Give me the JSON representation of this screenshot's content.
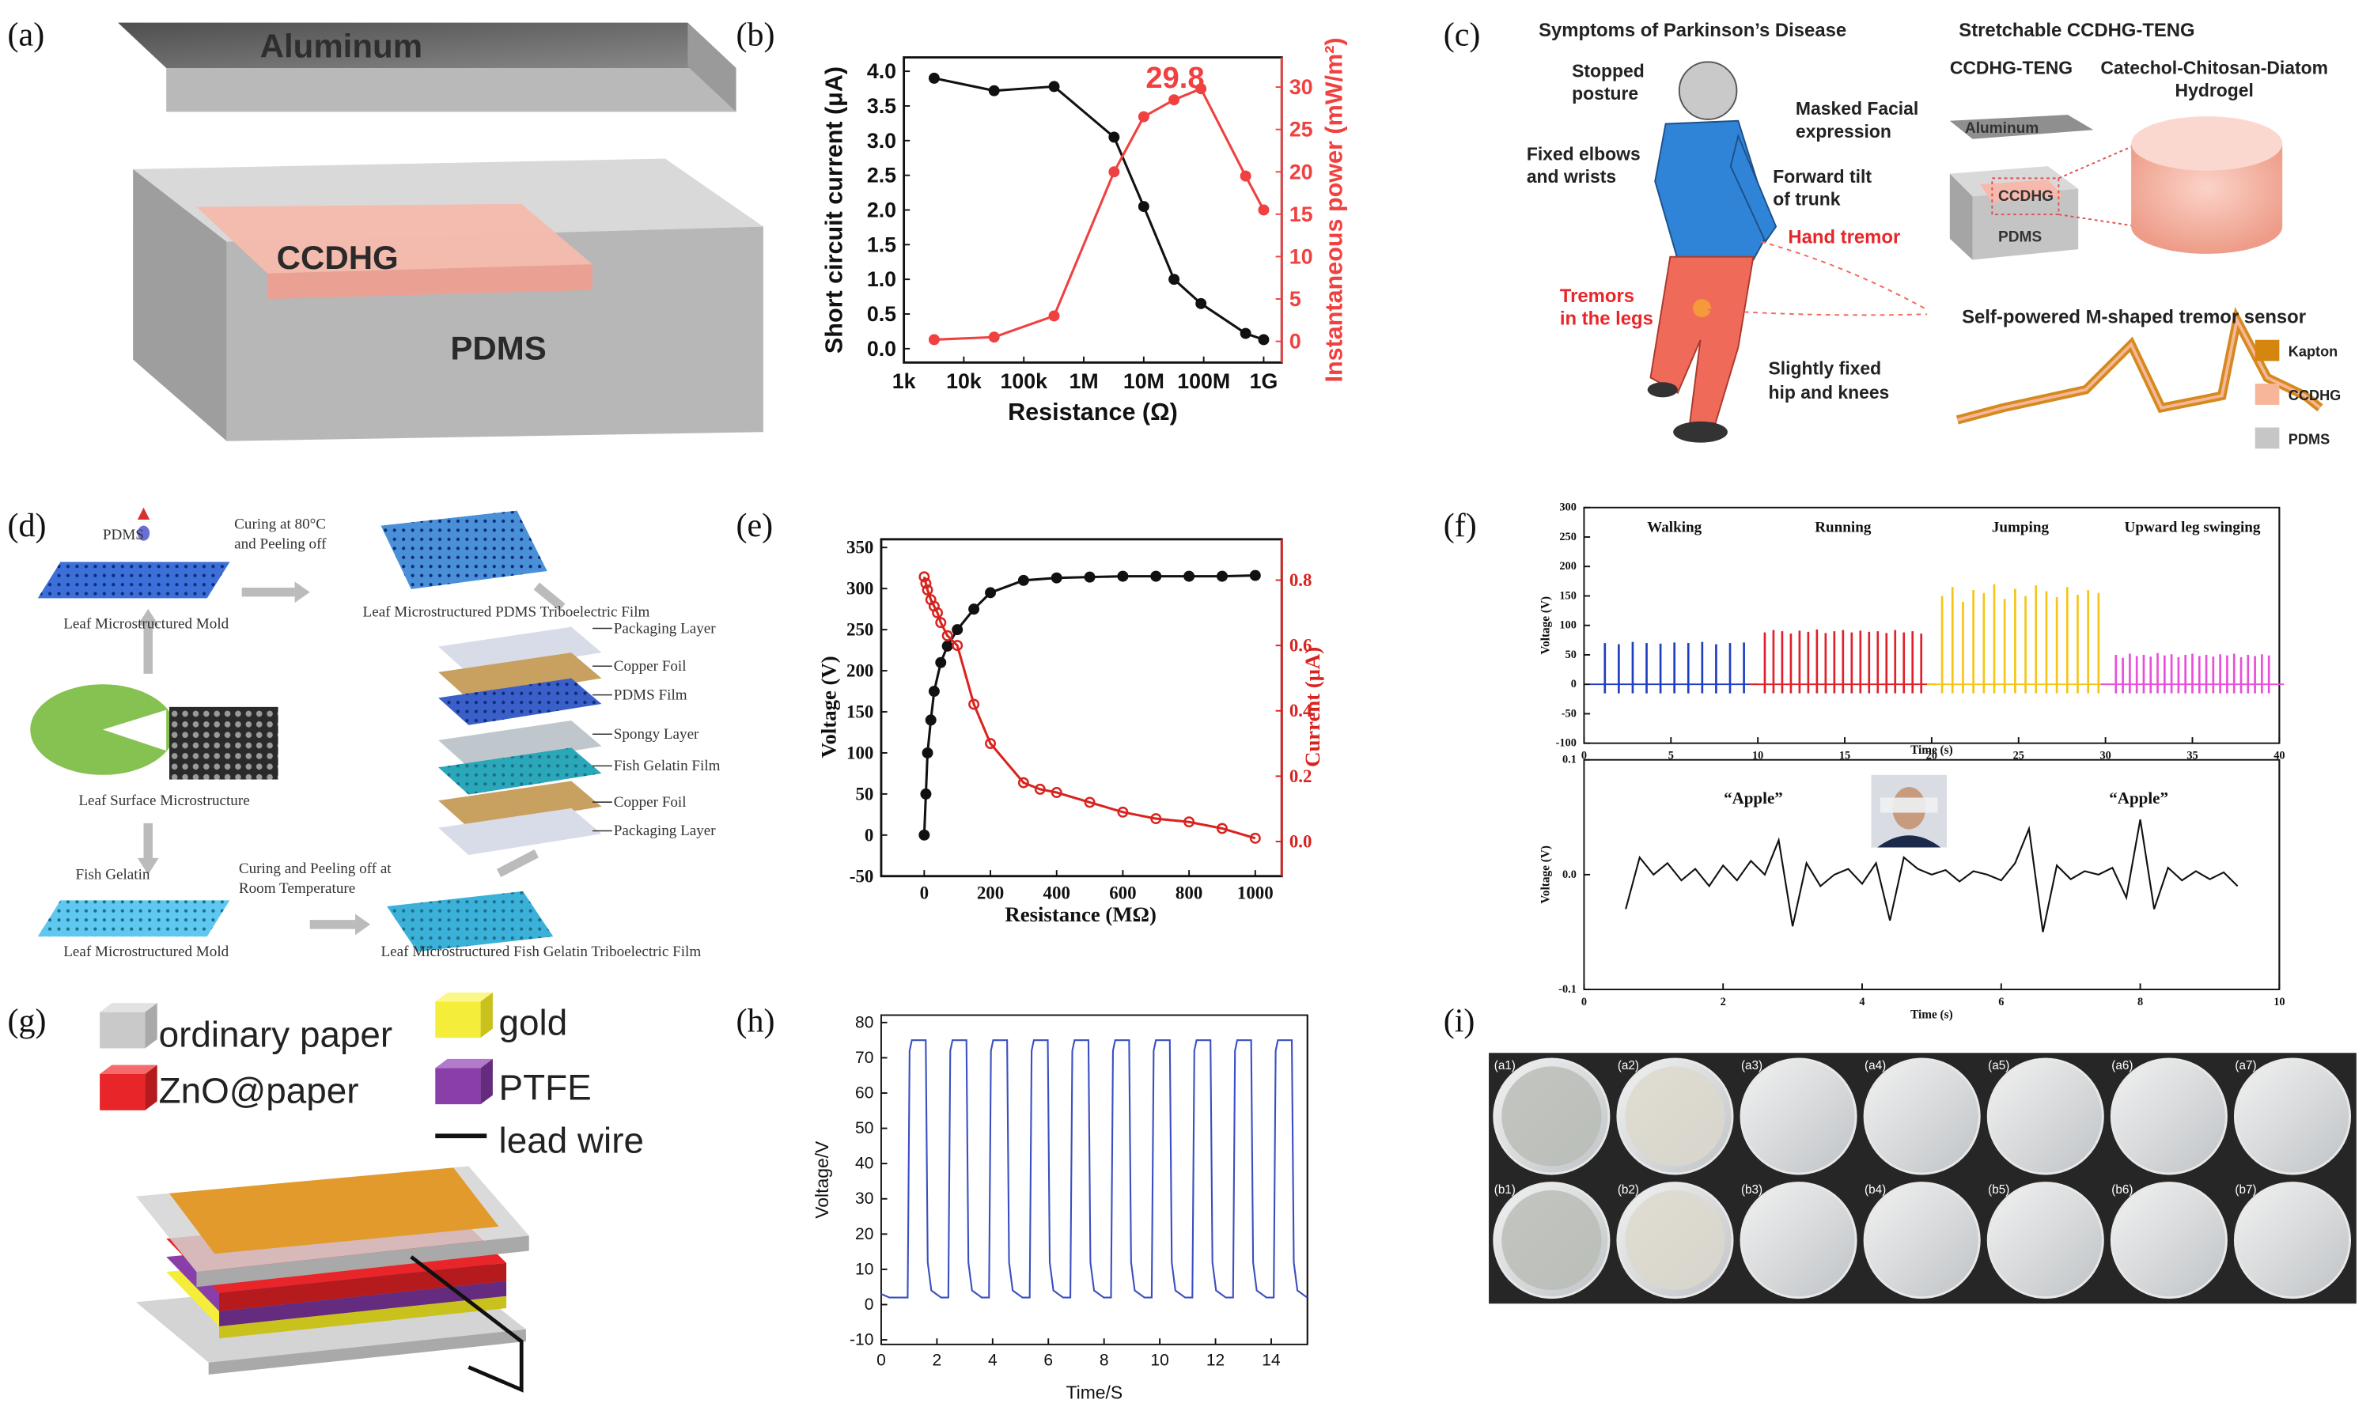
{
  "panel_labels": [
    "(a)",
    "(b)",
    "(c)",
    "(d)",
    "(e)",
    "(f)",
    "(g)",
    "(h)",
    "(i)"
  ],
  "a": {
    "top": "Aluminum",
    "middle": "CCDHG",
    "bottom": "PDMS"
  },
  "c": {
    "title": "Symptoms of Parkinson’s Disease",
    "stopped": [
      "Stopped",
      "posture"
    ],
    "masked": [
      "Masked Facial",
      "expression"
    ],
    "elbows": [
      "Fixed elbows",
      "and wrists"
    ],
    "trunk": [
      "Forward tilt",
      "of trunk"
    ],
    "hand": "Hand tremor",
    "legs": [
      "Tremors",
      "in the legs"
    ],
    "hip": [
      "Slightly fixed",
      "hip and knees"
    ],
    "right_title": "Stretchable CCDHG-TENG",
    "device": "CCDHG-TENG",
    "hydrogel": [
      "Catechol-Chitosan-Diatom",
      "Hydrogel"
    ],
    "aluminum": "Aluminum",
    "ccdhg": "CCDHG",
    "pdms": "PDMS",
    "sensor": "Self-powered M-shaped tremor sensor",
    "legend": [
      "Kapton",
      "CCDHG",
      "PDMS"
    ]
  },
  "d": {
    "pdms": "PDMS",
    "curing_top": [
      "Curing at 80°C",
      "and Peeling off"
    ],
    "pdms_film": "Leaf Microstructured PDMS Triboelectric Film",
    "mold_top": "Leaf Microstructured Mold",
    "leaf": "Leaf Surface Microstructure",
    "fish": "Fish Gelatin",
    "curing_bottom": [
      "Curing and Peeling off at",
      "Room Temperature"
    ],
    "mold_bottom": "Leaf Microstructured Mold",
    "fish_film": "Leaf Microstructured Fish Gelatin Triboelectric Film",
    "layers": [
      "Packaging Layer",
      "Copper Foil",
      "PDMS Film",
      "Spongy Layer",
      "Fish Gelatin Film",
      "Copper Foil",
      "Packaging Layer"
    ]
  },
  "g": {
    "legend": [
      {
        "label": "ordinary paper",
        "color": "#c9c9c9"
      },
      {
        "label": "gold",
        "color": "#f4ee3a"
      },
      {
        "label": "ZnO@paper",
        "color": "#e8262a"
      },
      {
        "label": "PTFE",
        "color": "#8a3fa8"
      },
      {
        "label": "lead wire",
        "color": "#111111"
      }
    ]
  },
  "i": {
    "labels": [
      [
        "(a1)",
        "(a2)",
        "(a3)",
        "(a4)",
        "(a5)",
        "(a6)",
        "(a7)"
      ],
      [
        "(b1)",
        "(b2)",
        "(b3)",
        "(b4)",
        "(b5)",
        "(b6)",
        "(b7)"
      ]
    ]
  },
  "chart_data": [
    {
      "type": "line",
      "markers": true,
      "log_x": true,
      "xlabel": "Resistance (Ω)",
      "ylabel": "Short circuit current (μA)",
      "y2label": "Instantaneous power (mW/m²)",
      "annotation": "29.8",
      "xlim": [
        1000,
        2000000000
      ],
      "xticks": [
        {
          "value": 1000,
          "label": "1k"
        },
        {
          "value": 10000,
          "label": "10k"
        },
        {
          "value": 100000,
          "label": "100k"
        },
        {
          "value": 1000000,
          "label": "1M"
        },
        {
          "value": 10000000,
          "label": "10M"
        },
        {
          "value": 100000000,
          "label": "100M"
        },
        {
          "value": 1000000000,
          "label": "1G"
        }
      ],
      "ylim": [
        -0.2,
        4.2
      ],
      "yticks": [
        {
          "value": 0,
          "label": "0.0"
        },
        0.5,
        {
          "value": 1,
          "label": "1.0"
        },
        1.5,
        {
          "value": 2,
          "label": "2.0"
        },
        2.5,
        {
          "value": 3,
          "label": "3.0"
        },
        3.5,
        {
          "value": 4,
          "label": "4.0"
        }
      ],
      "y2lim": [
        -2.5,
        33.5
      ],
      "y2ticks": [
        0,
        5,
        10,
        15,
        20,
        25,
        30
      ],
      "x": [
        3200,
        32000,
        320000,
        3200000,
        10000000,
        32000000,
        90000000,
        500000000,
        1000000000
      ],
      "series": [
        {
          "color": "#111111",
          "values": [
            3.9,
            3.72,
            3.78,
            3.05,
            2.05,
            1.0,
            0.65,
            0.22,
            0.13
          ]
        },
        {
          "color": "#f04040",
          "axis": "y2",
          "values": [
            0.2,
            0.5,
            3,
            20,
            26.5,
            28.5,
            29.8,
            19.5,
            15.5
          ]
        }
      ]
    },
    {
      "type": "line",
      "markers": true,
      "xlabel": "Resistance (MΩ)",
      "ylabel": "Voltage (V)",
      "y2label": "Current (μA)",
      "xlim": [
        -130,
        1080
      ],
      "xticks": [
        0,
        200,
        400,
        600,
        800,
        1000
      ],
      "ylim": [
        -50,
        360
      ],
      "yticks": [
        -50,
        0,
        50,
        100,
        150,
        200,
        250,
        300,
        350
      ],
      "y2lim": [
        -0.106,
        0.925
      ],
      "y2ticks": [
        {
          "value": 0,
          "label": "0.0"
        },
        0.2,
        0.4,
        0.6,
        0.8
      ],
      "series": [
        {
          "color": "#111111",
          "x": [
            0,
            5,
            10,
            20,
            30,
            50,
            70,
            100,
            150,
            200,
            300,
            400,
            500,
            600,
            700,
            800,
            900,
            1000
          ],
          "values": [
            0,
            50,
            100,
            140,
            175,
            210,
            230,
            250,
            275,
            295,
            310,
            313,
            314,
            315,
            315,
            315,
            315,
            316
          ]
        },
        {
          "color": "#d9231f",
          "axis": "y2",
          "x": [
            0,
            5,
            10,
            20,
            30,
            40,
            50,
            70,
            100,
            150,
            200,
            300,
            350,
            400,
            500,
            600,
            700,
            800,
            900,
            1000
          ],
          "values": [
            0.81,
            0.79,
            0.77,
            0.74,
            0.72,
            0.7,
            0.67,
            0.63,
            0.6,
            0.42,
            0.3,
            0.18,
            0.16,
            0.15,
            0.12,
            0.09,
            0.07,
            0.06,
            0.04,
            0.01
          ]
        }
      ]
    },
    {
      "type": "spikes",
      "xlabel": "Time (s)",
      "ylabel": "Voltage (V)",
      "xlim": [
        0,
        40
      ],
      "xticks": [
        0,
        5,
        10,
        15,
        20,
        25,
        30,
        35,
        40
      ],
      "ylim": [
        -100,
        300
      ],
      "yticks": [
        -100,
        -50,
        0,
        50,
        100,
        150,
        200,
        250,
        300
      ],
      "series": [
        {
          "name": "Walking",
          "color": "#1f3fbf",
          "x": [
            1.2,
            2.0,
            2.8,
            3.6,
            4.4,
            5.2,
            6.0,
            6.8,
            7.6,
            8.4,
            9.2
          ],
          "values": [
            70,
            68,
            72,
            70,
            69,
            71,
            70,
            72,
            68,
            70,
            71
          ]
        },
        {
          "name": "Running",
          "color": "#e0202a",
          "x": [
            10.4,
            10.9,
            11.4,
            11.9,
            12.4,
            12.9,
            13.4,
            13.9,
            14.4,
            14.9,
            15.4,
            15.9,
            16.4,
            16.9,
            17.4,
            17.9,
            18.4,
            18.9,
            19.4
          ],
          "values": [
            88,
            92,
            90,
            86,
            91,
            89,
            93,
            87,
            90,
            92,
            88,
            91,
            89,
            90,
            87,
            92,
            88,
            90,
            86
          ]
        },
        {
          "name": "Jumping",
          "color": "#f5c518",
          "x": [
            20.6,
            21.2,
            21.8,
            22.4,
            23.0,
            23.6,
            24.2,
            24.8,
            25.4,
            26.0,
            26.6,
            27.2,
            27.8,
            28.4,
            29.0,
            29.6
          ],
          "values": [
            150,
            165,
            140,
            160,
            155,
            170,
            145,
            162,
            150,
            168,
            158,
            148,
            165,
            152,
            160,
            155
          ]
        },
        {
          "name": "Upward leg swinging",
          "color": "#e84fd8",
          "x": [
            30.6,
            31.0,
            31.4,
            31.8,
            32.2,
            32.6,
            33.0,
            33.4,
            33.8,
            34.2,
            34.6,
            35.0,
            35.4,
            35.8,
            36.2,
            36.6,
            37.0,
            37.4,
            37.8,
            38.2,
            38.6,
            39.0,
            39.4
          ],
          "values": [
            50,
            45,
            52,
            48,
            50,
            47,
            53,
            49,
            51,
            46,
            50,
            52,
            48,
            50,
            47,
            51,
            49,
            52,
            46,
            50,
            48,
            51,
            49
          ]
        }
      ]
    },
    {
      "type": "line",
      "xlabel": "Time (s)",
      "ylabel": "Voltage (V)",
      "annotations": [
        "“Apple”",
        "“Apple”"
      ],
      "xlim": [
        0,
        10
      ],
      "xticks": [
        0,
        2,
        4,
        6,
        8,
        10
      ],
      "ylim": [
        -0.1,
        0.1
      ],
      "yticks": [
        -0.1,
        {
          "value": 0,
          "label": "0.0"
        },
        0.1
      ],
      "series": [
        {
          "color": "#111111",
          "x": [
            0.6,
            0.8,
            1.0,
            1.2,
            1.4,
            1.6,
            1.8,
            2.0,
            2.2,
            2.4,
            2.6,
            2.8,
            3.0,
            3.2,
            3.4,
            3.6,
            3.8,
            4.0,
            4.2,
            4.4,
            4.6,
            4.8,
            5.0,
            5.2,
            5.4,
            5.6,
            5.8,
            6.0,
            6.2,
            6.4,
            6.6,
            6.8,
            7.0,
            7.2,
            7.4,
            7.6,
            7.8,
            8.0,
            8.2,
            8.4,
            8.6,
            8.8,
            9.0,
            9.2,
            9.4
          ],
          "values": [
            -0.03,
            0.015,
            0.0,
            0.01,
            -0.005,
            0.005,
            -0.01,
            0.008,
            -0.005,
            0.012,
            0.0,
            0.03,
            -0.045,
            0.01,
            -0.01,
            0.0,
            0.005,
            -0.008,
            0.01,
            -0.04,
            0.015,
            0.005,
            0.0,
            0.004,
            -0.006,
            0.003,
            0.0,
            -0.005,
            0.01,
            0.04,
            -0.05,
            0.008,
            -0.004,
            0.003,
            0.0,
            0.006,
            -0.02,
            0.048,
            -0.03,
            0.006,
            -0.005,
            0.003,
            -0.004,
            0.002,
            -0.01
          ]
        }
      ]
    },
    {
      "type": "line",
      "xlabel": "Time/S",
      "ylabel": "Voltage/V",
      "xlim": [
        0,
        15.3
      ],
      "xticks": [
        0,
        2,
        4,
        6,
        8,
        10,
        12,
        14
      ],
      "ylim": [
        -11.3,
        82.1
      ],
      "yticks": [
        -10,
        0,
        10,
        20,
        30,
        40,
        50,
        60,
        70,
        80
      ],
      "series": [
        {
          "color": "#3a4fc0",
          "x": [
            0,
            0.3,
            0.95,
            1.02,
            1.1,
            1.6,
            1.67,
            1.8,
            2.15,
            2.41,
            2.48,
            2.56,
            3.06,
            3.13,
            3.26,
            3.61,
            3.87,
            3.94,
            4.02,
            4.52,
            4.59,
            4.72,
            5.07,
            5.33,
            5.4,
            5.48,
            5.98,
            6.05,
            6.18,
            6.53,
            6.79,
            6.86,
            6.94,
            7.44,
            7.51,
            7.64,
            7.99,
            8.25,
            8.32,
            8.4,
            8.9,
            8.97,
            9.1,
            9.45,
            9.71,
            9.78,
            9.86,
            10.36,
            10.43,
            10.56,
            10.91,
            11.17,
            11.24,
            11.32,
            11.82,
            11.89,
            12.02,
            12.37,
            12.63,
            12.7,
            12.78,
            13.28,
            13.35,
            13.48,
            13.83,
            14.09,
            14.16,
            14.24,
            14.74,
            14.81,
            14.94,
            15.29
          ],
          "values": [
            3,
            2,
            2,
            72,
            75,
            75,
            12,
            4,
            2,
            2,
            72,
            75,
            75,
            12,
            4,
            2,
            2,
            72,
            75,
            75,
            12,
            4,
            2,
            2,
            72,
            75,
            75,
            12,
            4,
            2,
            2,
            72,
            75,
            75,
            12,
            4,
            2,
            2,
            72,
            75,
            75,
            12,
            4,
            2,
            2,
            72,
            75,
            75,
            12,
            4,
            2,
            2,
            72,
            75,
            75,
            12,
            4,
            2,
            2,
            72,
            75,
            75,
            12,
            4,
            2,
            2,
            72,
            75,
            75,
            12,
            4,
            2
          ]
        }
      ]
    }
  ]
}
